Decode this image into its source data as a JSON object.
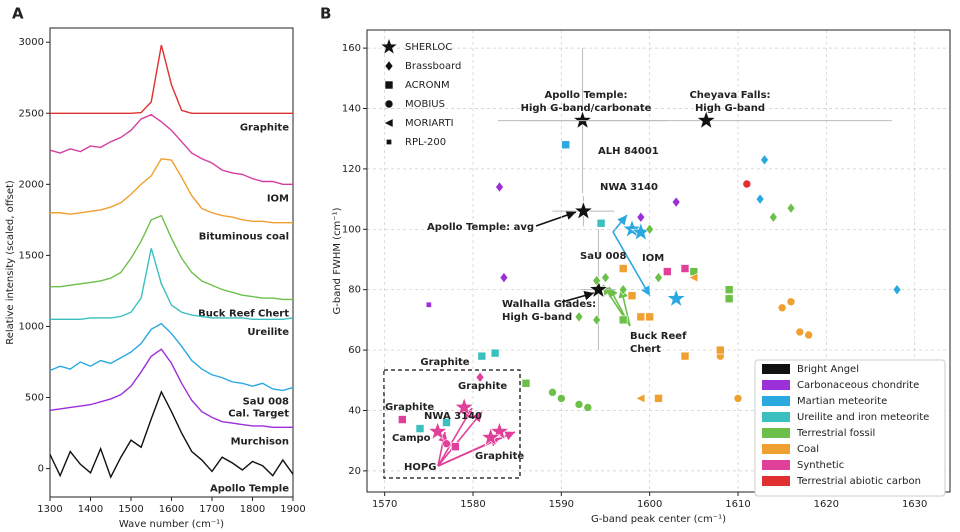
{
  "chart_data": [
    {
      "type": "line",
      "panel": "A",
      "xlabel": "Wave number (cm⁻¹)",
      "ylabel": "Relative intensity (scaled, offset)",
      "xlim": [
        1300,
        1900
      ],
      "ylim": [
        -200,
        3100
      ],
      "xticks": [
        1300,
        1400,
        1500,
        1600,
        1700,
        1800,
        1900
      ],
      "yticks": [
        0,
        500,
        1000,
        1500,
        2000,
        2500,
        3000
      ],
      "x": [
        1300,
        1325,
        1350,
        1375,
        1400,
        1425,
        1450,
        1475,
        1500,
        1525,
        1550,
        1575,
        1600,
        1625,
        1650,
        1675,
        1700,
        1725,
        1750,
        1775,
        1800,
        1825,
        1850,
        1875,
        1900
      ],
      "series": [
        {
          "label": [
            "Graphite"
          ],
          "color": "#e03030",
          "values": [
            2500,
            2500,
            2500,
            2500,
            2500,
            2500,
            2500,
            2500,
            2500,
            2505,
            2580,
            2980,
            2700,
            2520,
            2500,
            2500,
            2500,
            2500,
            2500,
            2500,
            2500,
            2500,
            2500,
            2500,
            2500
          ]
        },
        {
          "label": [
            "IOM"
          ],
          "color": "#d63ca0",
          "values": [
            2240,
            2220,
            2250,
            2230,
            2270,
            2260,
            2300,
            2330,
            2380,
            2460,
            2490,
            2440,
            2380,
            2300,
            2220,
            2180,
            2150,
            2100,
            2080,
            2070,
            2040,
            2020,
            2020,
            2000,
            2000
          ]
        },
        {
          "label": [
            "Bituminous coal"
          ],
          "color": "#f0a030",
          "values": [
            1800,
            1800,
            1790,
            1800,
            1810,
            1820,
            1840,
            1870,
            1930,
            2000,
            2060,
            2180,
            2170,
            2050,
            1920,
            1830,
            1800,
            1780,
            1770,
            1750,
            1740,
            1740,
            1730,
            1730,
            1730
          ]
        },
        {
          "label": [
            "Buck Reef Chert"
          ],
          "color": "#6cc04a",
          "values": [
            1280,
            1280,
            1290,
            1300,
            1310,
            1320,
            1340,
            1380,
            1480,
            1600,
            1750,
            1780,
            1620,
            1480,
            1380,
            1320,
            1290,
            1260,
            1240,
            1220,
            1210,
            1200,
            1200,
            1190,
            1190
          ]
        },
        {
          "label": [
            "Ureilite"
          ],
          "color": "#3cbfbf",
          "values": [
            1050,
            1050,
            1050,
            1050,
            1060,
            1060,
            1060,
            1070,
            1100,
            1200,
            1550,
            1300,
            1150,
            1100,
            1080,
            1070,
            1060,
            1060,
            1060,
            1060,
            1050,
            1050,
            1050,
            1050,
            1060
          ]
        },
        {
          "label": [
            "SaU 008",
            "Cal. Target"
          ],
          "color": "#29a9e0",
          "values": [
            690,
            720,
            700,
            750,
            720,
            760,
            740,
            780,
            820,
            880,
            980,
            1020,
            950,
            860,
            760,
            700,
            660,
            640,
            610,
            600,
            580,
            600,
            560,
            550,
            570
          ]
        },
        {
          "label": [
            "Murchison"
          ],
          "color": "#9b30d9",
          "values": [
            410,
            420,
            430,
            440,
            450,
            470,
            490,
            520,
            580,
            680,
            790,
            840,
            740,
            600,
            480,
            400,
            360,
            330,
            320,
            310,
            300,
            300,
            290,
            290,
            290
          ]
        },
        {
          "label": [
            "Apollo Temple"
          ],
          "color": "#111111",
          "values": [
            100,
            -50,
            120,
            30,
            -30,
            140,
            -60,
            80,
            200,
            150,
            350,
            540,
            400,
            250,
            120,
            60,
            -20,
            80,
            40,
            -10,
            50,
            20,
            -50,
            60,
            -40
          ]
        }
      ]
    },
    {
      "type": "scatter",
      "panel": "B",
      "grid": true,
      "xlabel": "G-band peak center (cm⁻¹)",
      "ylabel": "G-band FWHM (cm⁻¹)",
      "xlim": [
        1568,
        1634
      ],
      "ylim": [
        13,
        166
      ],
      "xticks": [
        1570,
        1580,
        1590,
        1600,
        1610,
        1620,
        1630
      ],
      "yticks": [
        20,
        40,
        60,
        80,
        100,
        120,
        140,
        160
      ],
      "instruments": [
        {
          "name": "SHERLOC",
          "marker": "star"
        },
        {
          "name": "Brassboard",
          "marker": "diamond"
        },
        {
          "name": "ACRONM",
          "marker": "square"
        },
        {
          "name": "MOBIUS",
          "marker": "circle"
        },
        {
          "name": "MORIARTI",
          "marker": "triangle"
        },
        {
          "name": "RPL-200",
          "marker": "small-square"
        }
      ],
      "series": [
        {
          "name": "Bright Angel",
          "color": "#111111",
          "x": [
            1592.4,
            1606.4,
            1592.5,
            1594.2
          ],
          "y": [
            136,
            136,
            106,
            80
          ],
          "xerr": [
            9.6,
            21,
            3.5,
            2
          ],
          "yerr": [
            24,
            0,
            5,
            20
          ],
          "markers": [
            "star",
            "star",
            "star",
            "star"
          ]
        },
        {
          "name": "Carbonaceous chondrite",
          "color": "#9b30d9",
          "x": [
            1583,
            1583.5,
            1599,
            1603,
            1575
          ],
          "y": [
            114,
            84,
            104,
            109,
            75
          ],
          "markers": [
            "diamond",
            "diamond",
            "diamond",
            "diamond",
            "small-square"
          ]
        },
        {
          "name": "Martian meteorite",
          "color": "#29a9e0",
          "x": [
            1590.5,
            1598,
            1599,
            1603,
            1613,
            1612.5,
            1628
          ],
          "y": [
            128,
            100,
            99,
            77,
            123,
            110,
            80
          ],
          "markers": [
            "square",
            "star",
            "star",
            "star",
            "diamond",
            "diamond",
            "diamond"
          ]
        },
        {
          "name": "Ureilite and iron meteorite",
          "color": "#3cbfbf",
          "x": [
            1581,
            1582.5,
            1594.5,
            1577,
            1574
          ],
          "y": [
            58,
            59,
            102,
            36,
            34
          ],
          "markers": [
            "square",
            "square",
            "square",
            "square",
            "square"
          ]
        },
        {
          "name": "Terrestrial fossil",
          "color": "#6cc04a",
          "x": [
            1594,
            1595,
            1592,
            1594,
            1597,
            1600,
            1601,
            1614,
            1616,
            1586,
            1605,
            1609,
            1609,
            1597,
            1589,
            1590,
            1592,
            1593
          ],
          "y": [
            83,
            84,
            71,
            70,
            80,
            100,
            84,
            104,
            107,
            49,
            86,
            80,
            77,
            70,
            46,
            44,
            42,
            41
          ],
          "markers": [
            "diamond",
            "diamond",
            "diamond",
            "diamond",
            "diamond",
            "diamond",
            "diamond",
            "diamond",
            "diamond",
            "square",
            "square",
            "square",
            "square",
            "square",
            "circle",
            "circle",
            "circle",
            "circle"
          ]
        },
        {
          "name": "Coal",
          "color": "#f0a030",
          "x": [
            1615,
            1616,
            1617,
            1618,
            1608,
            1610,
            1597,
            1598,
            1599,
            1600,
            1604,
            1608,
            1605,
            1599,
            1601
          ],
          "y": [
            74,
            76,
            66,
            65,
            58,
            44,
            87,
            78,
            71,
            71,
            58,
            60,
            84,
            44,
            44
          ],
          "markers": [
            "circle",
            "circle",
            "circle",
            "circle",
            "circle",
            "circle",
            "square",
            "square",
            "square",
            "square",
            "square",
            "square",
            "triangle",
            "triangle",
            "square"
          ]
        },
        {
          "name": "Synthetic",
          "color": "#e0409a",
          "x": [
            1604,
            1602,
            1580.8,
            1572,
            1579,
            1576,
            1577,
            1578,
            1583,
            1582
          ],
          "y": [
            87,
            86,
            51,
            37,
            41,
            33,
            29,
            28,
            33,
            31
          ],
          "markers": [
            "square",
            "square",
            "diamond",
            "square",
            "star",
            "star",
            "circle",
            "square",
            "star",
            "star"
          ]
        },
        {
          "name": "Terrestrial abiotic carbon",
          "color": "#e03030",
          "x": [
            1611
          ],
          "y": [
            115
          ],
          "markers": [
            "circle"
          ]
        }
      ],
      "annotations": [
        {
          "lines": [
            "Apollo Temple:",
            "High G-band/carbonate"
          ],
          "color": "#111111"
        },
        {
          "lines": [
            "Cheyava Falls:",
            "High G-band"
          ],
          "color": "#111111"
        },
        {
          "lines": [
            "ALH 84001"
          ],
          "color": "#29a9e0"
        },
        {
          "lines": [
            "NWA 3140"
          ],
          "color": "#3cbfbf"
        },
        {
          "lines": [
            "Apollo Temple: avg"
          ],
          "color": "#111111"
        },
        {
          "lines": [
            "SaU 008"
          ],
          "color": "#29a9e0"
        },
        {
          "lines": [
            "IOM"
          ],
          "color": "#e0409a"
        },
        {
          "lines": [
            "Walhalla Glades:",
            "High G-band"
          ],
          "color": "#111111"
        },
        {
          "lines": [
            "Buck Reef",
            "Chert"
          ],
          "color": "#6cc04a"
        },
        {
          "lines": [
            "Graphite"
          ],
          "color": "#111111"
        },
        {
          "lines": [
            "Graphite"
          ],
          "color": "#e0409a"
        },
        {
          "lines": [
            "Graphite"
          ],
          "color": "#e0409a"
        },
        {
          "lines": [
            "NWA 3140"
          ],
          "color": "#3cbfbf"
        },
        {
          "lines": [
            "Campo"
          ],
          "color": "#3cbfbf"
        },
        {
          "lines": [
            "HOPG"
          ],
          "color": "#e0409a"
        },
        {
          "lines": [
            "Graphite"
          ],
          "color": "#e0409a"
        }
      ]
    }
  ]
}
